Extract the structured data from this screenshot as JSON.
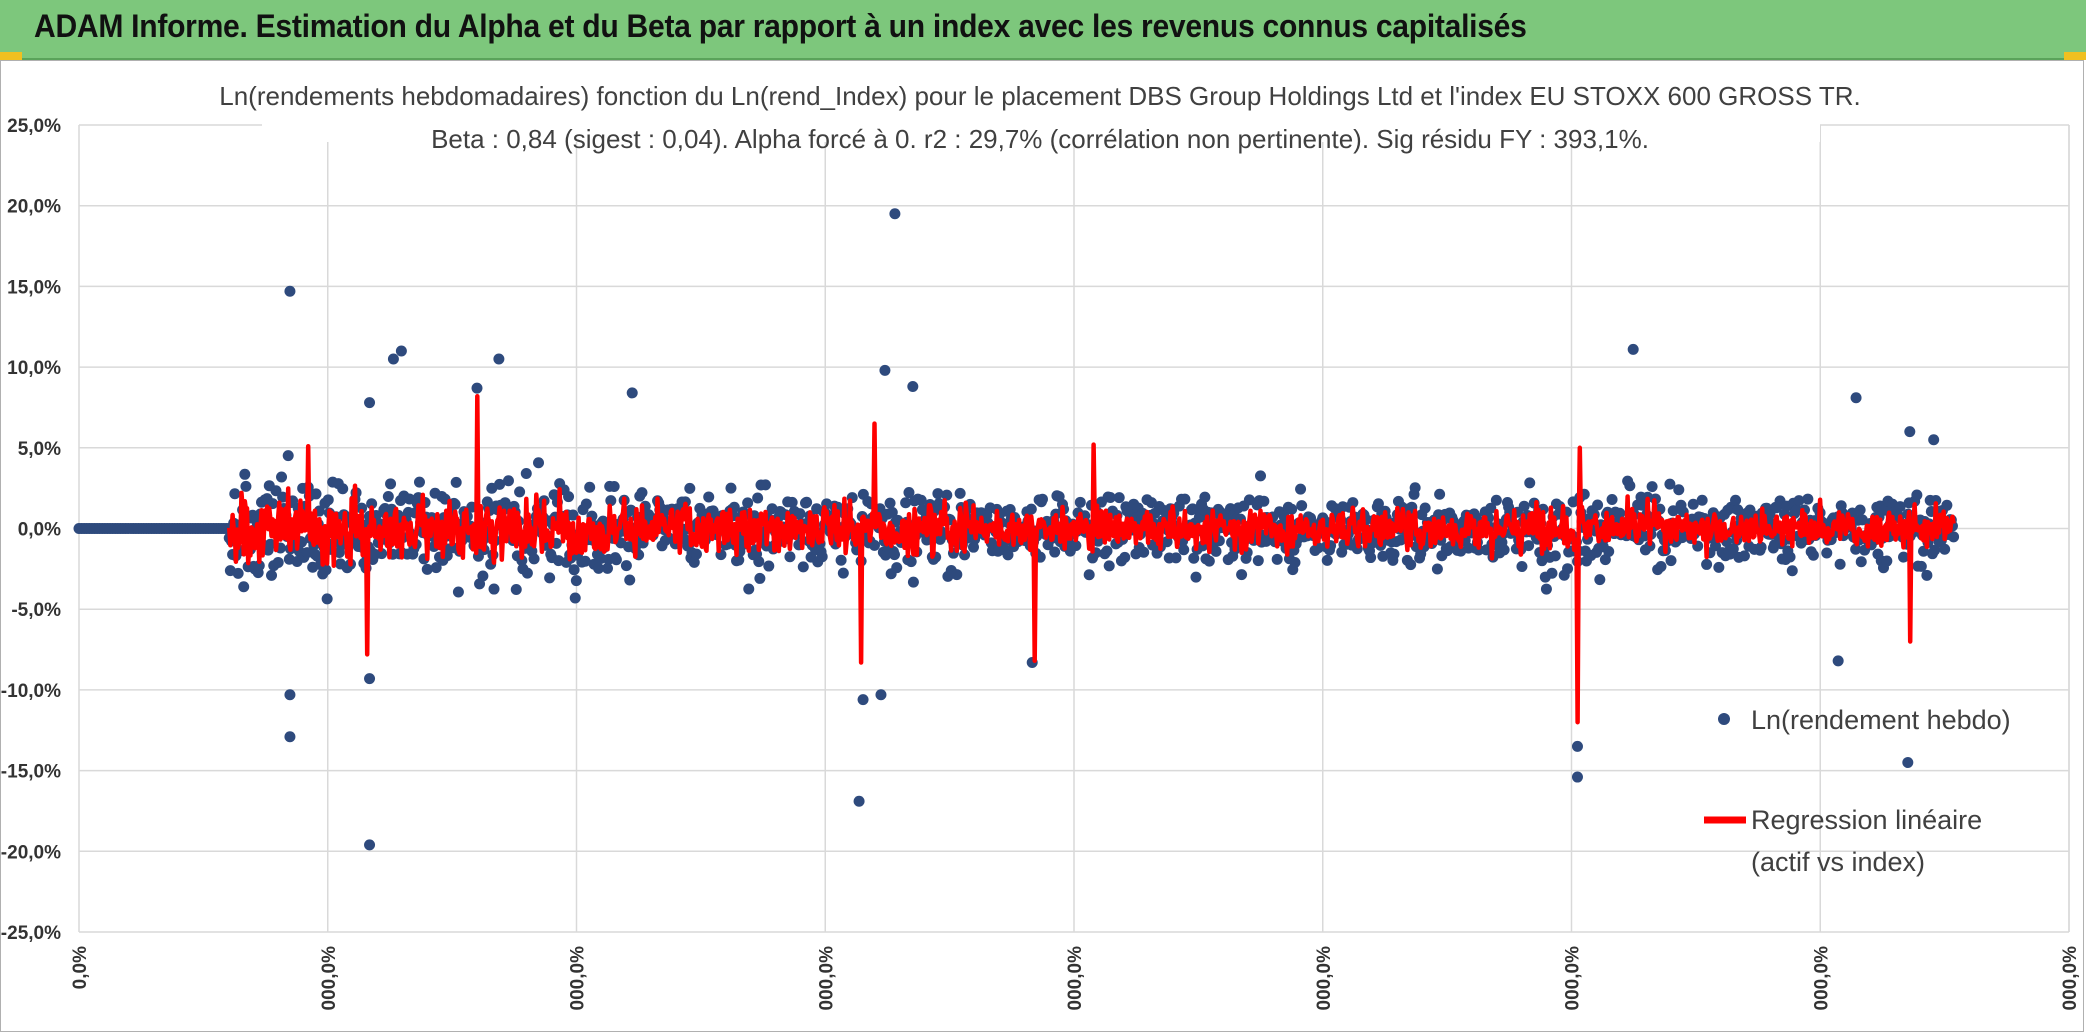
{
  "banner": {
    "title": "ADAM Informe. Estimation du Alpha et du Beta par rapport à un index avec les revenus connus capitalisés",
    "color": "#7dc77c"
  },
  "chart_data": {
    "type": "scatter",
    "title": "Ln(rendements hebdomadaires) fonction du Ln(rend_Index) pour le placement DBS Group Holdings Ltd et l'index EU STOXX 600 GROSS TR.",
    "subtitle": "Beta : 0,84 (sigest : 0,04). Alpha forcé à 0. r2 : 29,7% (corrélation non pertinente). Sig résidu FY : 393,1%.",
    "ylim": [
      -25,
      25
    ],
    "y_ticks": [
      "25,0%",
      "20,0%",
      "15,0%",
      "10,0%",
      "5,0%",
      "0,0%",
      "-5,0%",
      "-10,0%",
      "-15,0%",
      "-20,0%",
      "-25,0%"
    ],
    "x_ticks": [
      "0,0%",
      "000,0%",
      "000,0%",
      "000,0%",
      "000,0%",
      "000,0%",
      "000,0%",
      "000,0%",
      "000,0%"
    ],
    "grid": true,
    "legend_position": "right",
    "series": [
      {
        "name": "Ln(rendement hebdo)",
        "kind": "points",
        "color": "#2e4a7d"
      },
      {
        "name": "Regression linéaire",
        "name_line2": "(actif vs index)",
        "kind": "line",
        "color": "#ff0000"
      }
    ],
    "outliers": [
      {
        "x": 0.106,
        "y": 14.7
      },
      {
        "x": 0.106,
        "y": -10.3
      },
      {
        "x": 0.106,
        "y": -12.9
      },
      {
        "x": 0.146,
        "y": -19.6
      },
      {
        "x": 0.146,
        "y": 7.8
      },
      {
        "x": 0.146,
        "y": -9.3
      },
      {
        "x": 0.158,
        "y": 10.5
      },
      {
        "x": 0.162,
        "y": 11.0
      },
      {
        "x": 0.2,
        "y": 8.7
      },
      {
        "x": 0.211,
        "y": 10.5
      },
      {
        "x": 0.278,
        "y": 8.4
      },
      {
        "x": 0.392,
        "y": -16.9
      },
      {
        "x": 0.394,
        "y": -10.6
      },
      {
        "x": 0.403,
        "y": -10.3
      },
      {
        "x": 0.41,
        "y": 19.5
      },
      {
        "x": 0.405,
        "y": 9.8
      },
      {
        "x": 0.419,
        "y": 8.8
      },
      {
        "x": 0.479,
        "y": -8.3
      },
      {
        "x": 0.753,
        "y": -15.4
      },
      {
        "x": 0.753,
        "y": -13.5
      },
      {
        "x": 0.781,
        "y": 11.1
      },
      {
        "x": 0.893,
        "y": 8.1
      },
      {
        "x": 0.884,
        "y": -8.2
      },
      {
        "x": 0.919,
        "y": -14.5
      },
      {
        "x": 0.92,
        "y": 6.0
      },
      {
        "x": 0.932,
        "y": 5.5
      }
    ]
  }
}
